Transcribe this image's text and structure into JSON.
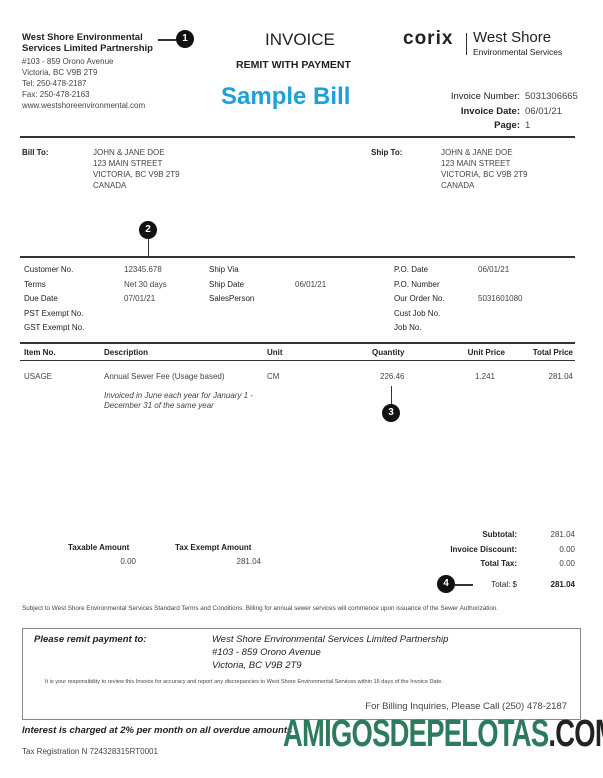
{
  "company": {
    "name_line1": "West Shore Environmental",
    "name_line2": "Services Limited Partnership",
    "address1": "#103 - 859 Orono Avenue",
    "address2": "Victoria, BC V9B 2T9",
    "tel": "Tel: 250-478-2187",
    "fax": "Fax: 250-478-2163",
    "website": "www.westshoreenvironmental.com"
  },
  "header": {
    "title": "INVOICE",
    "subtitle": "REMIT WITH PAYMENT",
    "sample": "Sample Bill",
    "sample_color": "#1ea0d8"
  },
  "logo": {
    "brand": "corix",
    "name": "West Shore",
    "tagline": "Environmental Services"
  },
  "invoice_meta": {
    "number_label": "Invoice Number:",
    "number": "5031306665",
    "date_label": "Invoice Date:",
    "date": "06/01/21",
    "page_label": "Page:",
    "page": "1"
  },
  "callouts": [
    "1",
    "2",
    "3",
    "4"
  ],
  "bill_to": {
    "label": "Bill To:",
    "lines": [
      "JOHN & JANE DOE",
      "123 MAIN STREET",
      "VICTORIA, BC V9B 2T9",
      "CANADA"
    ]
  },
  "ship_to": {
    "label": "Ship To:",
    "lines": [
      "JOHN & JANE DOE",
      "123 MAIN STREET",
      "VICTORIA, BC V9B 2T9",
      "CANADA"
    ]
  },
  "details": {
    "customer_no_label": "Customer No.",
    "customer_no": "12345.678",
    "terms_label": "Terms",
    "terms": "Net 30 days",
    "due_date_label": "Due Date",
    "due_date": "07/01/21",
    "pst_label": "PST Exempt No.",
    "gst_label": "GST Exempt No.",
    "ship_via_label": "Ship Via",
    "ship_date_label": "Ship Date",
    "ship_date": "06/01/21",
    "salesperson_label": "SalesPerson",
    "po_date_label": "P.O. Date",
    "po_date": "06/01/21",
    "po_number_label": "P.O. Number",
    "our_order_label": "Our Order No.",
    "our_order": "5031601080",
    "cust_job_label": "Cust Job No.",
    "job_label": "Job No."
  },
  "table": {
    "headers": [
      "Item No.",
      "Description",
      "Unit",
      "Quantity",
      "Unit Price",
      "Total Price"
    ],
    "rows": [
      {
        "item": "USAGE",
        "description": "Annual Sewer Fee (Usage based)",
        "unit": "CM",
        "quantity": "226.46",
        "unit_price": "1.241",
        "total": "281.04",
        "note": "Invoiced in June each year for January 1 - December 31 of the same year"
      }
    ]
  },
  "tax": {
    "taxable_label": "Taxable Amount",
    "taxable": "0.00",
    "exempt_label": "Tax Exempt Amount",
    "exempt": "281.04"
  },
  "totals": {
    "subtotal_label": "Subtotal:",
    "subtotal": "281.04",
    "discount_label": "Invoice Discount:",
    "discount": "0.00",
    "tax_label": "Total Tax:",
    "tax": "0.00",
    "total_label": "Total: $",
    "total": "281.04"
  },
  "terms_note": "Subject to West Shore Environmental Services Standard Terms and Conditions. Billing for annual sewer services will commence upon issuance of the Sewer Authorization.",
  "remit": {
    "label": "Please remit payment to:",
    "line1": "West Shore Environmental Services Limited Partnership",
    "line2": "#103 - 859 Orono Avenue",
    "line3": "Victoria, BC V9B 2T9",
    "responsibility": "It is your responsibility to review this Invoice for accuracy and report any discrepancies to West Shore Environmental Services within 15 days of the Invoice Date.",
    "inquiries": "For Billing Inquiries, Please Call (250) 478-2187"
  },
  "interest": "Interest is charged at 2% per month on all overdue amounts",
  "tax_registration": "Tax Registration N 724328315RT0001",
  "watermark": {
    "part1": "AMIGOSDEPELOTAS",
    "part2": ".COM",
    "color1": "#2e7a5c",
    "color2": "#222222"
  }
}
